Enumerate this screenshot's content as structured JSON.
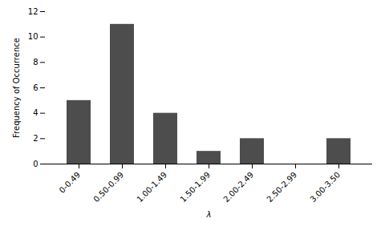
{
  "chart_data": {
    "type": "bar",
    "categories": [
      "0-0.49",
      "0.50-0.99",
      "1.00-1.49",
      "1.50-1.99",
      "2.00-2.49",
      "2.50-2.99",
      "3.00-3.50"
    ],
    "values": [
      5,
      11,
      4,
      1,
      2,
      0,
      2
    ],
    "color": "#4d4d4d",
    "xlabel": "λ",
    "ylabel": "Frequency of Occurrence",
    "ylim": [
      0,
      12
    ],
    "yticks": [
      0,
      2,
      4,
      6,
      8,
      10,
      12
    ]
  }
}
